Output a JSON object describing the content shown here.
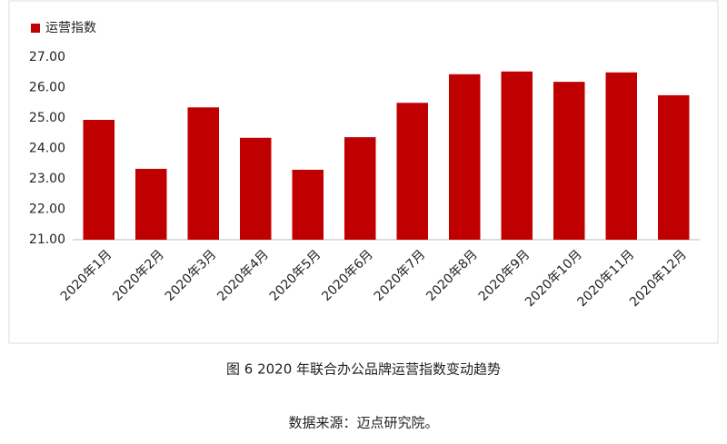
{
  "chart_data": {
    "type": "bar",
    "categories": [
      "2020年1月",
      "2020年2月",
      "2020年3月",
      "2020年4月",
      "2020年5月",
      "2020年6月",
      "2020年7月",
      "2020年8月",
      "2020年9月",
      "2020年10月",
      "2020年11月",
      "2020年12月"
    ],
    "series": [
      {
        "name": "运营指数",
        "color": "#c00000",
        "values": [
          24.94,
          23.33,
          25.35,
          24.35,
          23.3,
          24.37,
          25.5,
          26.44,
          26.53,
          26.19,
          26.5,
          25.75
        ]
      }
    ],
    "ylim": [
      21,
      27
    ],
    "yticks": [
      {
        "value": 21,
        "label": "21.00"
      },
      {
        "value": 22,
        "label": "22.00"
      },
      {
        "value": 23,
        "label": "23.00"
      },
      {
        "value": 24,
        "label": "24.00"
      },
      {
        "value": 25,
        "label": "25.00"
      },
      {
        "value": 26,
        "label": "26.00"
      },
      {
        "value": 27,
        "label": "27.00"
      }
    ],
    "grid": false,
    "legend": "top-left",
    "caption": "图 6 2020 年联合办公品牌运营指数变动趋势",
    "source": "数据来源：迈点研究院。"
  }
}
